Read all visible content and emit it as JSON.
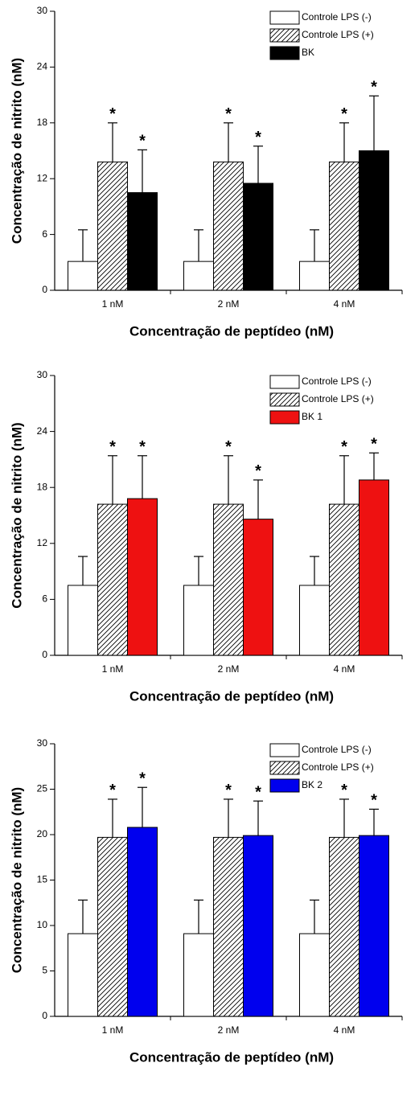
{
  "chart_data": [
    {
      "type": "bar",
      "x_label": "Concentração de peptídeo (nM)",
      "y_label": "Concentração de nitrito (nM)",
      "categories": [
        "1 nM",
        "2 nM",
        "4 nM"
      ],
      "ylim": [
        0,
        30
      ],
      "yticks": [
        0,
        6,
        12,
        18,
        24,
        30
      ],
      "series": [
        {
          "name": "Controle LPS (-)",
          "color": "#ffffff",
          "values": [
            3.1,
            3.1,
            3.1
          ],
          "errors": [
            3.4,
            3.4,
            3.4
          ]
        },
        {
          "name": "Controle LPS (+)",
          "color": "#ffffff",
          "pattern": "hatch",
          "values": [
            13.8,
            13.8,
            13.8
          ],
          "errors": [
            4.2,
            4.2,
            4.2
          ],
          "markers": [
            "*",
            "*",
            "*"
          ]
        },
        {
          "name": "BK",
          "color": "#000000",
          "values": [
            10.5,
            11.5,
            15.0
          ],
          "errors": [
            4.6,
            4.0,
            5.9
          ],
          "markers": [
            "*",
            "*",
            "*"
          ]
        }
      ]
    },
    {
      "type": "bar",
      "x_label": "Concentração de peptídeo (nM)",
      "y_label": "Concentração de nitrito (nM)",
      "categories": [
        "1 nM",
        "2 nM",
        "4 nM"
      ],
      "ylim": [
        0,
        30
      ],
      "yticks": [
        0,
        6,
        12,
        18,
        24,
        30
      ],
      "series": [
        {
          "name": "Controle LPS (-)",
          "color": "#ffffff",
          "values": [
            7.5,
            7.5,
            7.5
          ],
          "errors": [
            3.1,
            3.1,
            3.1
          ]
        },
        {
          "name": "Controle LPS (+)",
          "color": "#ffffff",
          "pattern": "hatch",
          "values": [
            16.2,
            16.2,
            16.2
          ],
          "errors": [
            5.2,
            5.2,
            5.2
          ],
          "markers": [
            "*",
            "*",
            "*"
          ]
        },
        {
          "name": "BK 1",
          "color": "#ee1111",
          "values": [
            16.8,
            14.6,
            18.8
          ],
          "errors": [
            4.6,
            4.2,
            2.9
          ],
          "markers": [
            "*",
            "*",
            "*"
          ]
        }
      ]
    },
    {
      "type": "bar",
      "x_label": "Concentração de peptídeo (nM)",
      "y_label": "Concentração de nitrito (nM)",
      "categories": [
        "1 nM",
        "2 nM",
        "4 nM"
      ],
      "ylim": [
        0,
        30
      ],
      "yticks": [
        0,
        5,
        10,
        15,
        20,
        25,
        30
      ],
      "series": [
        {
          "name": "Controle LPS (-)",
          "color": "#ffffff",
          "values": [
            9.1,
            9.1,
            9.1
          ],
          "errors": [
            3.7,
            3.7,
            3.7
          ]
        },
        {
          "name": "Controle LPS (+)",
          "color": "#ffffff",
          "pattern": "hatch",
          "values": [
            19.7,
            19.7,
            19.7
          ],
          "errors": [
            4.2,
            4.2,
            4.2
          ],
          "markers": [
            "*",
            "*",
            "*"
          ]
        },
        {
          "name": "BK 2",
          "color": "#0000ee",
          "values": [
            20.8,
            19.9,
            19.9
          ],
          "errors": [
            4.4,
            3.8,
            2.9
          ],
          "markers": [
            "*",
            "*",
            "*"
          ]
        }
      ]
    }
  ]
}
